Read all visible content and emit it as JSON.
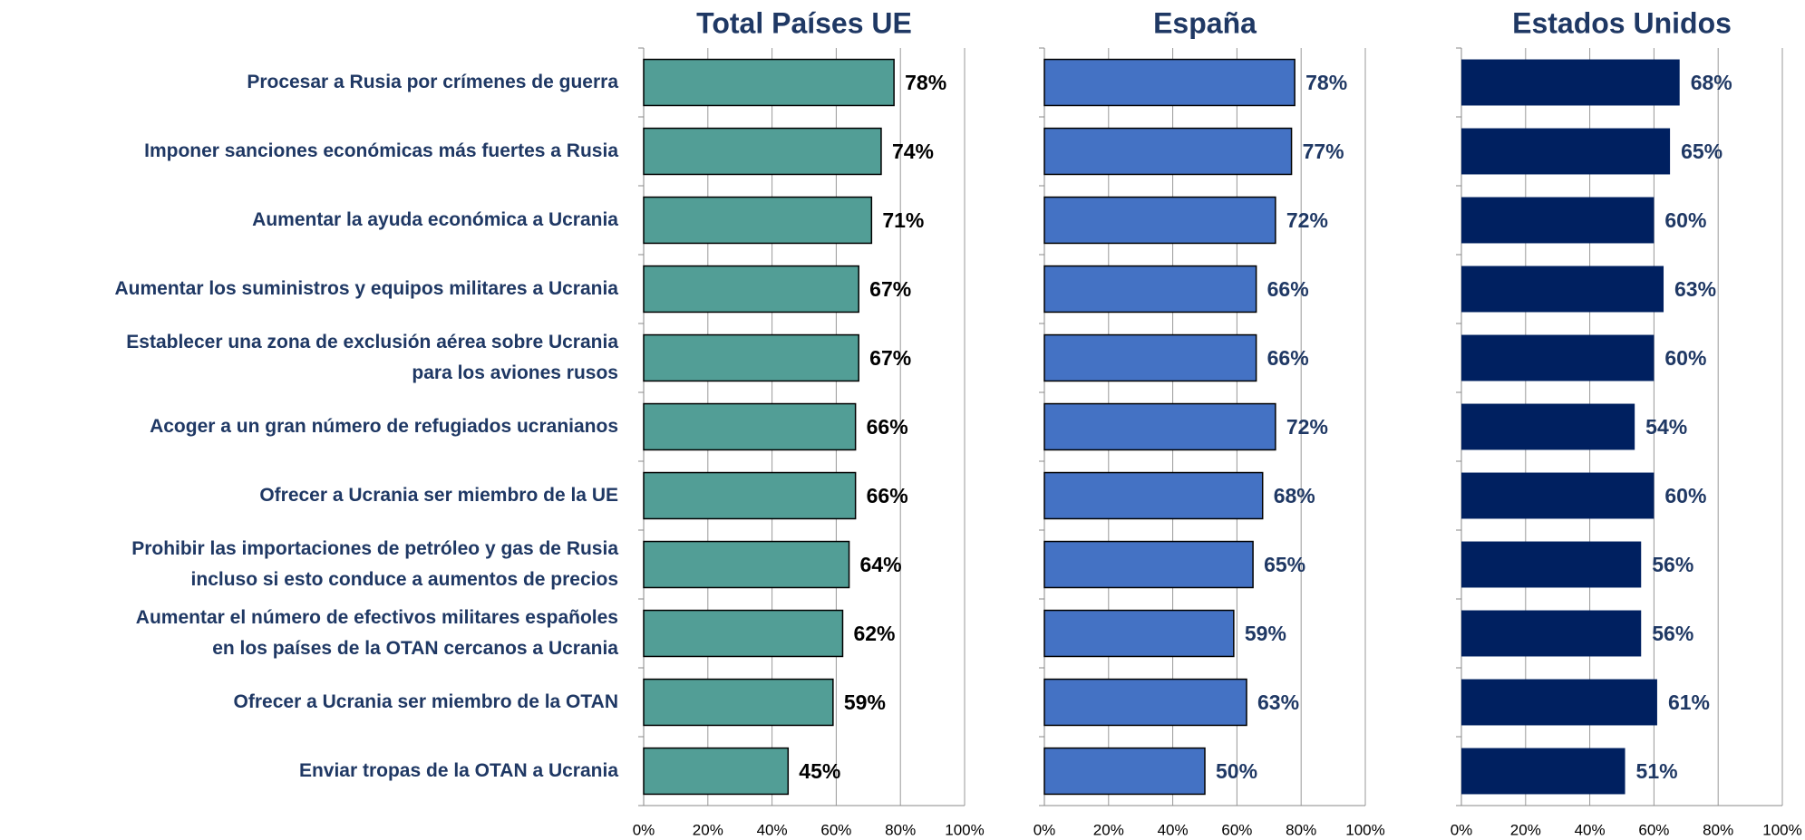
{
  "chart_data": [
    {
      "type": "barh",
      "title": "Total Países UE",
      "color": "#529e96",
      "stroke": "#000000",
      "label_color": "#000000",
      "categories": [
        "Procesar a Rusia por crímenes de guerra",
        "Imponer sanciones económicas más fuertes a Rusia",
        "Aumentar la ayuda económica a Ucrania",
        "Aumentar los suministros y equipos militares a Ucrania",
        "Establecer una zona de exclusión aérea sobre Ucrania\npara los aviones rusos",
        "Acoger a un gran número de refugiados ucranianos",
        "Ofrecer a Ucrania ser miembro de la UE",
        "Prohibir las importaciones de petróleo y gas de Rusia\nincluso si esto conduce a aumentos de precios",
        "Aumentar el número de efectivos militares españoles\nen los países de la OTAN cercanos a Ucrania",
        "Ofrecer a Ucrania ser miembro de la OTAN",
        "Enviar tropas de la OTAN a Ucrania"
      ],
      "values": [
        78,
        74,
        71,
        67,
        67,
        66,
        66,
        64,
        62,
        59,
        45
      ],
      "value_labels": [
        "78%",
        "74%",
        "71%",
        "67%",
        "67%",
        "66%",
        "66%",
        "64%",
        "62%",
        "59%",
        "45%"
      ],
      "xlim": [
        0,
        100
      ],
      "xticks": [
        {
          "value": 0,
          "label": "0%"
        },
        {
          "value": 20,
          "label": "20%"
        },
        {
          "value": 40,
          "label": "40%"
        },
        {
          "value": 60,
          "label": "60%"
        },
        {
          "value": 80,
          "label": "80%"
        },
        {
          "value": 100,
          "label": "100%"
        }
      ],
      "grid": true
    },
    {
      "type": "barh",
      "title": "España",
      "color": "#4472c4",
      "stroke": "#000000",
      "label_color": "#1f3864",
      "values": [
        78,
        77,
        72,
        66,
        66,
        72,
        68,
        65,
        59,
        63,
        50
      ],
      "value_labels": [
        "78%",
        "77%",
        "72%",
        "66%",
        "66%",
        "72%",
        "68%",
        "65%",
        "59%",
        "63%",
        "50%"
      ],
      "xlim": [
        0,
        100
      ],
      "xticks": [
        {
          "value": 0,
          "label": "0%"
        },
        {
          "value": 20,
          "label": "20%"
        },
        {
          "value": 40,
          "label": "40%"
        },
        {
          "value": 60,
          "label": "60%"
        },
        {
          "value": 80,
          "label": "80%"
        },
        {
          "value": 100,
          "label": "100%"
        }
      ],
      "grid": true
    },
    {
      "type": "barh",
      "title": "Estados Unidos",
      "color": "#002060",
      "stroke": "none",
      "label_color": "#1f3864",
      "values": [
        68,
        65,
        60,
        63,
        60,
        54,
        60,
        56,
        56,
        61,
        51
      ],
      "value_labels": [
        "68%",
        "65%",
        "60%",
        "63%",
        "60%",
        "54%",
        "60%",
        "56%",
        "56%",
        "61%",
        "51%"
      ],
      "xlim": [
        0,
        100
      ],
      "xticks": [
        {
          "value": 0,
          "label": "0%"
        },
        {
          "value": 20,
          "label": "20%"
        },
        {
          "value": 40,
          "label": "40%"
        },
        {
          "value": 60,
          "label": "60%"
        },
        {
          "value": 80,
          "label": "80%"
        },
        {
          "value": 100,
          "label": "100%"
        }
      ],
      "grid": true
    }
  ]
}
